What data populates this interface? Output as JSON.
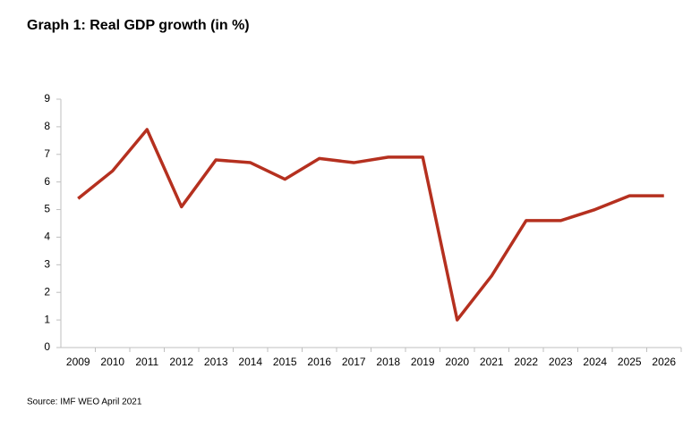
{
  "chart_data": {
    "type": "line",
    "title": "Graph 1: Real GDP growth (in %)",
    "source": "Source: IMF WEO April 2021",
    "categories": [
      "2009",
      "2010",
      "2011",
      "2012",
      "2013",
      "2014",
      "2015",
      "2016",
      "2017",
      "2018",
      "2019",
      "2020",
      "2021",
      "2022",
      "2023",
      "2024",
      "2025",
      "2026"
    ],
    "values": [
      5.4,
      6.4,
      7.9,
      5.1,
      6.8,
      6.7,
      6.1,
      6.85,
      6.7,
      6.9,
      6.9,
      1.0,
      2.6,
      4.6,
      4.6,
      5.0,
      5.5,
      5.5
    ],
    "color": "#b5301f",
    "ylim": [
      0,
      9
    ],
    "yticks": [
      0,
      1,
      2,
      3,
      4,
      5,
      6,
      7,
      8,
      9
    ],
    "grid": false
  }
}
